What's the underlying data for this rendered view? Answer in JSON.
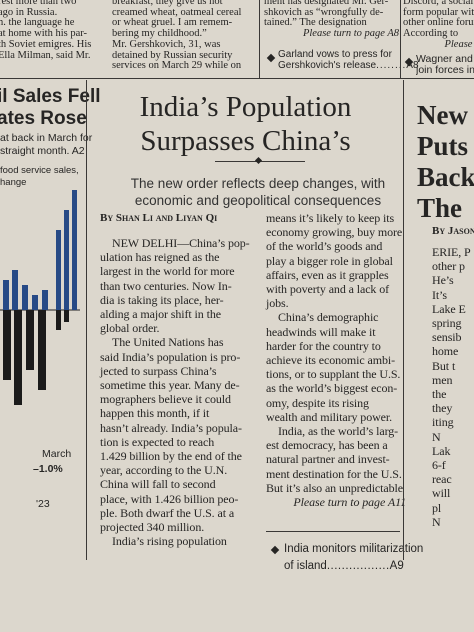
{
  "top_strip": {
    "col1": [
      "rest more than two",
      "ago in Russia.",
      "n. the language he",
      "at home with his par-",
      "th Soviet emigres. His",
      "Ella Milman, said Mr."
    ],
    "col2": [
      "breakfast, they give us hot",
      "creamed wheat, oatmeal cereal",
      "or wheat gruel. I am remem-",
      "bering my childhood.”",
      "Mr. Gershkovich, 31, was",
      "detained by Russian security",
      "services on March 29 while on"
    ],
    "col3": {
      "lines": [
        "ment has designated Mr. Ger-",
        "shkovich as “wrongfully de-",
        "tained.” The designation"
      ],
      "jump": "Please turn to page A8",
      "teaser": [
        "Garland vows to press for",
        "Gershkovich's release"
      ],
      "teaser_page": "A8"
    },
    "col4": {
      "lines": [
        "Discord, a social me",
        "form popular with",
        "other online forum",
        "According to"
      ],
      "jump": "Please t",
      "teaser": [
        "Wagner and R",
        "join forces in"
      ]
    }
  },
  "left_column": {
    "headline": [
      "il Sales Fell",
      "ates Rose"
    ],
    "summary": [
      "at back in March for",
      "straight month. A2"
    ],
    "chart_label": [
      "food service sales,",
      "hange"
    ],
    "chart_month": "March",
    "chart_value": "–1.0%",
    "chart_year": "'23"
  },
  "main_article": {
    "headline": [
      "India’s Population",
      "Surpasses China’s"
    ],
    "subheadline": [
      "The new order reflects deep changes, with",
      "economic and geopolitical consequences"
    ],
    "byline": "By Shan Li and Liyan Qi",
    "column1": [
      [
        "NEW DELHI—China’s pop-",
        "ulation has reigned as the",
        "largest in the world for more",
        "than two centuries. Now In-",
        "dia is taking its place, her-",
        "alding a major shift in the",
        "global order."
      ],
      [
        "The United Nations has",
        "said India’s population is pro-",
        "jected to surpass China’s",
        "sometime this year. Many de-",
        "mographers believe it could",
        "happen this month, if it",
        "hasn’t already. India’s popula-",
        "tion is expected to reach",
        "1.429 billion by the end of the",
        "year, according to the U.N.",
        "China will fall to second",
        "place, with 1.426 billion peo-",
        "ple. Both dwarf the U.S. at a",
        "projected 340 million."
      ],
      [
        "India’s rising population"
      ]
    ],
    "column2": [
      [
        "means it’s likely to keep its",
        "economy growing, buy more",
        "of the world’s goods and",
        "play a bigger role in global",
        "affairs, even as it grapples",
        "with poverty and a lack of",
        "jobs."
      ],
      [
        "China’s demographic",
        "headwinds will make it",
        "harder for the country to",
        "achieve its economic ambi-",
        "tions, or to supplant the U.S.",
        "as the world’s biggest econ-",
        "omy, despite its rising",
        "wealth and military power."
      ],
      [
        "India, as the world’s larg-",
        "est democracy, has been a",
        "natural partner and invest-",
        "ment destination for the U.S.",
        "But it’s also an unpredictable"
      ]
    ],
    "jump": "Please turn to page A11",
    "teaser": [
      "India monitors militarization",
      "of island"
    ],
    "teaser_page": "A9"
  },
  "right_column": {
    "headline": [
      "New I",
      "Puts",
      "Back",
      "The"
    ],
    "byline": "By Jason",
    "lines": [
      "ERIE, P",
      "other p",
      "He’s",
      "It’s",
      "Lake E",
      "spring",
      "sensib",
      "home",
      "But t",
      "men",
      "the",
      "they",
      "iting",
      "N",
      "Lak",
      "6-f",
      "reac",
      "will",
      "pl",
      "N"
    ]
  }
}
